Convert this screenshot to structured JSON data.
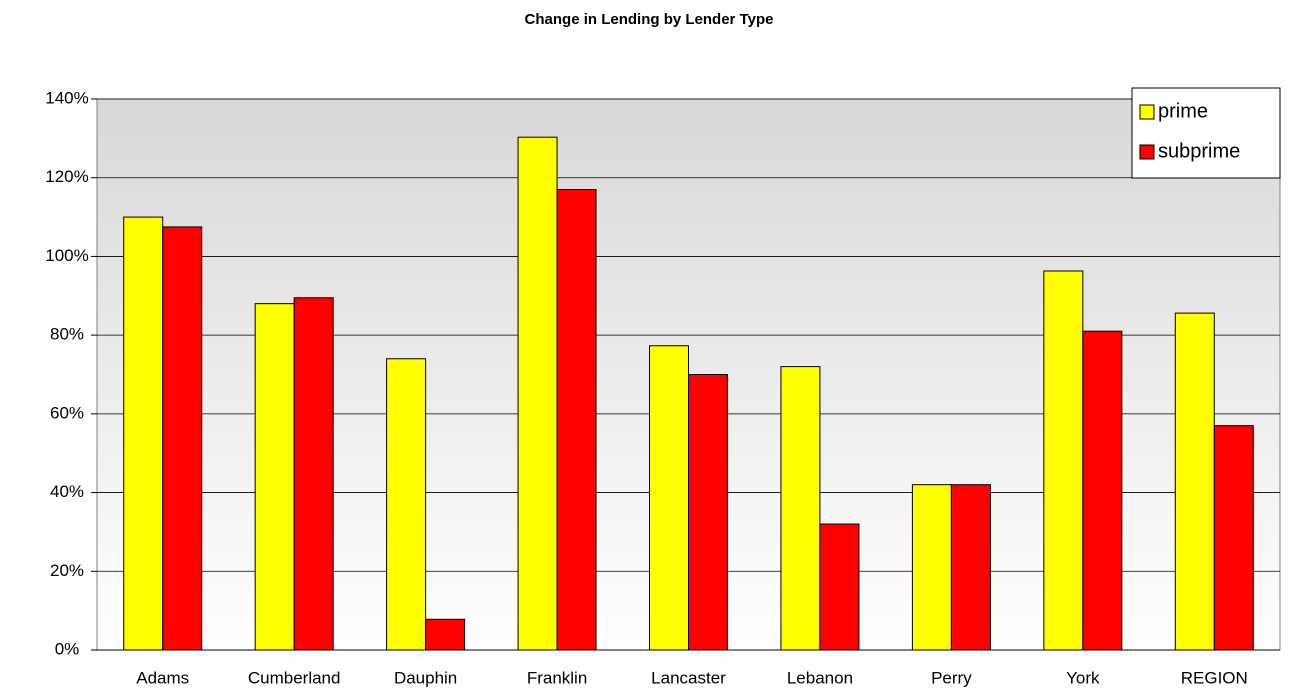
{
  "chart_data": {
    "type": "bar",
    "title": "Change in Lending by Lender Type",
    "categories": [
      "Adams",
      "Cumberland",
      "Dauphin",
      "Franklin",
      "Lancaster",
      "Lebanon",
      "Perry",
      "York",
      "REGION"
    ],
    "series": [
      {
        "name": "prime",
        "color": "#ffff00",
        "values": [
          110,
          88,
          74,
          130.3,
          77.3,
          72,
          42,
          96.3,
          85.6
        ]
      },
      {
        "name": "subprime",
        "color": "#ff0000",
        "values": [
          107.5,
          89.5,
          7.8,
          117,
          70,
          32,
          42,
          81,
          57
        ]
      }
    ],
    "ylim": [
      0,
      140
    ],
    "yticks": [
      {
        "value": 0,
        "label": "0%"
      },
      {
        "value": 20,
        "label": "20%"
      },
      {
        "value": 40,
        "label": "40%"
      },
      {
        "value": 60,
        "label": "60%"
      },
      {
        "value": 80,
        "label": "80%"
      },
      {
        "value": 100,
        "label": "100%"
      },
      {
        "value": 120,
        "label": "120%"
      },
      {
        "value": 140,
        "label": "140%"
      }
    ],
    "grid": true,
    "legend": "top-right"
  }
}
